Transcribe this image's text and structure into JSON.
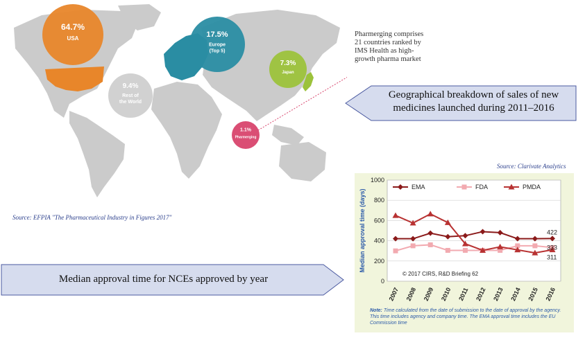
{
  "map": {
    "regions": [
      {
        "name": "USA",
        "percent": "64.7%",
        "label": "USA",
        "color": "#e8862a"
      },
      {
        "name": "Europe",
        "percent": "17.5%",
        "label": "Europe",
        "label2": "(Top 5)",
        "color": "#2a8da3"
      },
      {
        "name": "Japan",
        "percent": "7.3%",
        "label": "Japan",
        "color": "#9cc23b"
      },
      {
        "name": "Rest of the World",
        "percent": "9.4%",
        "label": "Rest of",
        "label2": "the World",
        "color": "#cfcfcf"
      },
      {
        "name": "Pharmerging",
        "percent": "1.1%",
        "label": "Pharmerging",
        "color": "#d8456d"
      }
    ],
    "source": "Source: EFPIA \"The Pharmaceutical Industry in Figures 2017\""
  },
  "note": {
    "text": "Pharmerging comprises 21 countries ranked by IMS Health as high-growth pharma market"
  },
  "arrows": {
    "top": {
      "line1": "Geographical breakdown of sales of new",
      "line2": "medicines launched during 2011–2016"
    },
    "bottom": {
      "text": "Median approval time for NCEs approved by year"
    }
  },
  "chart_source": "Source: Clarivate Analytics",
  "chart_data": {
    "type": "line",
    "x": [
      "2007",
      "2008",
      "2009",
      "2010",
      "2011",
      "2012",
      "2013",
      "2014",
      "2015",
      "2016"
    ],
    "series": [
      {
        "name": "EMA",
        "color": "#8b1a1a",
        "marker": "diamond",
        "values": [
          420,
          420,
          475,
          440,
          450,
          490,
          480,
          420,
          420,
          422
        ]
      },
      {
        "name": "FDA",
        "color": "#f2aab0",
        "marker": "square",
        "values": [
          300,
          350,
          360,
          305,
          305,
          305,
          305,
          350,
          350,
          333
        ]
      },
      {
        "name": "PMDA",
        "color": "#b83232",
        "marker": "triangle",
        "values": [
          650,
          575,
          665,
          580,
          370,
          305,
          340,
          310,
          280,
          311
        ]
      }
    ],
    "ylabel": "Median approval time (days)",
    "ylim": [
      0,
      1000
    ],
    "yticks": [
      "0",
      "200",
      "400",
      "600",
      "800",
      "1000"
    ],
    "end_labels": [
      "422",
      "333",
      "311"
    ],
    "grid": "horizontal",
    "legend": "top",
    "copyright": "© 2017 CIRS, R&D Briefing 62",
    "note_label": "Note:",
    "note": "Time calculated from the date of submission to the date of approval by the agency. This time includes agency and company time. The EMA approval time includes the EU Commission time"
  }
}
